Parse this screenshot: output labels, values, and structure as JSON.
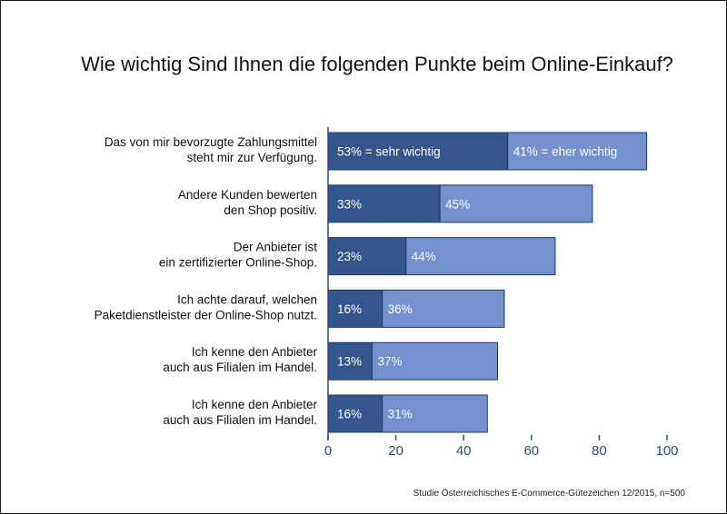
{
  "chart_data": {
    "type": "bar",
    "orientation": "horizontal",
    "stacked": true,
    "title": "Wie wichtig Sind Ihnen die folgenden Punkte beim Online-Einkauf?",
    "source": "Studie Österreichisches E-Commerce-Gütezeichen 12/2015, n=500",
    "categories": [
      [
        "Das von mir bevorzugte Zahlungsmittel",
        "steht mir zur Verfügung."
      ],
      [
        "Andere Kunden bewerten",
        "den Shop positiv."
      ],
      [
        "Der Anbieter ist",
        "ein zertifizierter Online-Shop."
      ],
      [
        "Ich achte darauf, welchen",
        "Paketdienstleister der Online-Shop nutzt."
      ],
      [
        "Ich kenne den Anbieter",
        "auch aus Filialen im Handel."
      ],
      [
        "Ich kenne den Anbieter",
        "auch aus Filialen im Handel."
      ]
    ],
    "series": [
      {
        "values": [
          53,
          33,
          23,
          16,
          13,
          16
        ],
        "labels": [
          "53% = sehr wichtig",
          "33%",
          "23%",
          "16%",
          "13%",
          "16%"
        ],
        "color": "#33568c"
      },
      {
        "values": [
          41,
          45,
          44,
          36,
          37,
          31
        ],
        "labels": [
          "41% = eher wichtig",
          "45%",
          "44%",
          "36%",
          "37%",
          "31%"
        ],
        "color": "#7391cc"
      }
    ],
    "xlim": [
      0,
      100
    ],
    "xticks": [
      "0",
      "20",
      "40",
      "60",
      "80",
      "100"
    ],
    "grid": false,
    "colors": {
      "axis": "#2e4f84",
      "bar_border": "#1f3a66"
    }
  }
}
